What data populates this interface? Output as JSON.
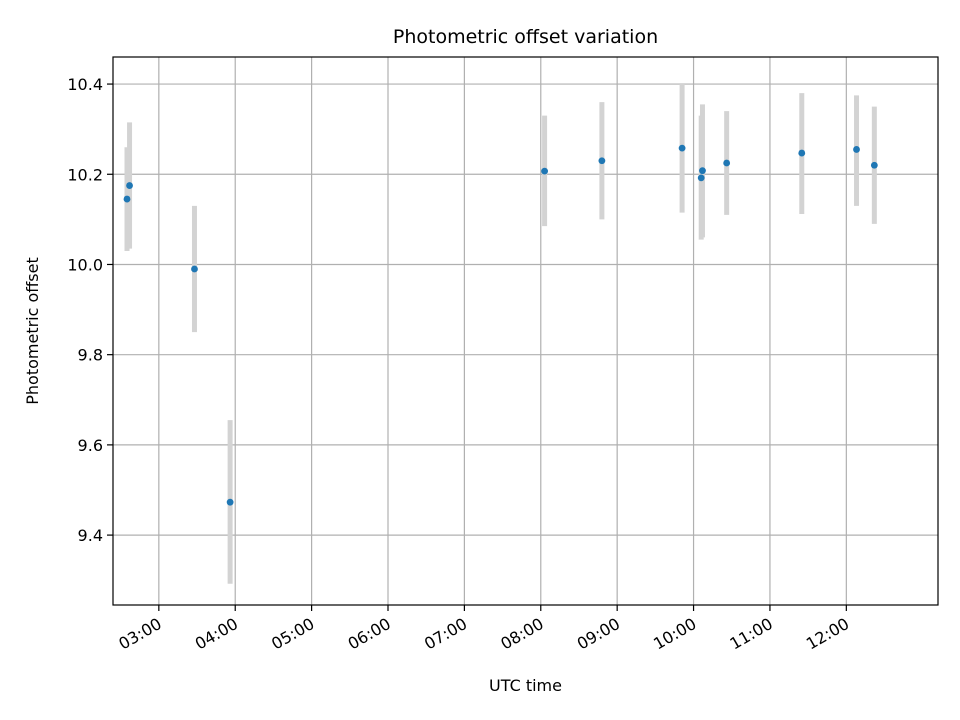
{
  "chart_data": {
    "type": "scatter",
    "title": "Photometric offset variation",
    "xlabel": "UTC time",
    "ylabel": "Photometric offset",
    "x_axis_kind": "time",
    "xlim": [
      "02:24",
      "13:12"
    ],
    "ylim": [
      9.245,
      10.46
    ],
    "grid": true,
    "x_ticks": [
      "03:00",
      "04:00",
      "05:00",
      "06:00",
      "07:00",
      "08:00",
      "09:00",
      "10:00",
      "11:00",
      "12:00"
    ],
    "y_ticks": [
      "9.4",
      "9.6",
      "9.8",
      "10.0",
      "10.2",
      "10.4"
    ],
    "point_color": "#1f77b4",
    "errorbar_color": "#d3d3d3",
    "points": [
      {
        "x": "02:35",
        "y": 10.145,
        "ylow": 10.03,
        "yhigh": 10.26
      },
      {
        "x": "02:37",
        "y": 10.175,
        "ylow": 10.035,
        "yhigh": 10.315
      },
      {
        "x": "03:28",
        "y": 9.99,
        "ylow": 9.85,
        "yhigh": 10.13
      },
      {
        "x": "03:56",
        "y": 9.473,
        "ylow": 9.292,
        "yhigh": 9.655
      },
      {
        "x": "08:03",
        "y": 10.207,
        "ylow": 10.085,
        "yhigh": 10.33
      },
      {
        "x": "08:48",
        "y": 10.23,
        "ylow": 10.1,
        "yhigh": 10.36
      },
      {
        "x": "09:51",
        "y": 10.258,
        "ylow": 10.115,
        "yhigh": 10.4
      },
      {
        "x": "10:06",
        "y": 10.192,
        "ylow": 10.055,
        "yhigh": 10.33
      },
      {
        "x": "10:07",
        "y": 10.208,
        "ylow": 10.06,
        "yhigh": 10.355
      },
      {
        "x": "10:26",
        "y": 10.225,
        "ylow": 10.11,
        "yhigh": 10.34
      },
      {
        "x": "11:25",
        "y": 10.247,
        "ylow": 10.112,
        "yhigh": 10.38
      },
      {
        "x": "12:08",
        "y": 10.255,
        "ylow": 10.13,
        "yhigh": 10.375
      },
      {
        "x": "12:22",
        "y": 10.22,
        "ylow": 10.09,
        "yhigh": 10.35
      }
    ]
  }
}
